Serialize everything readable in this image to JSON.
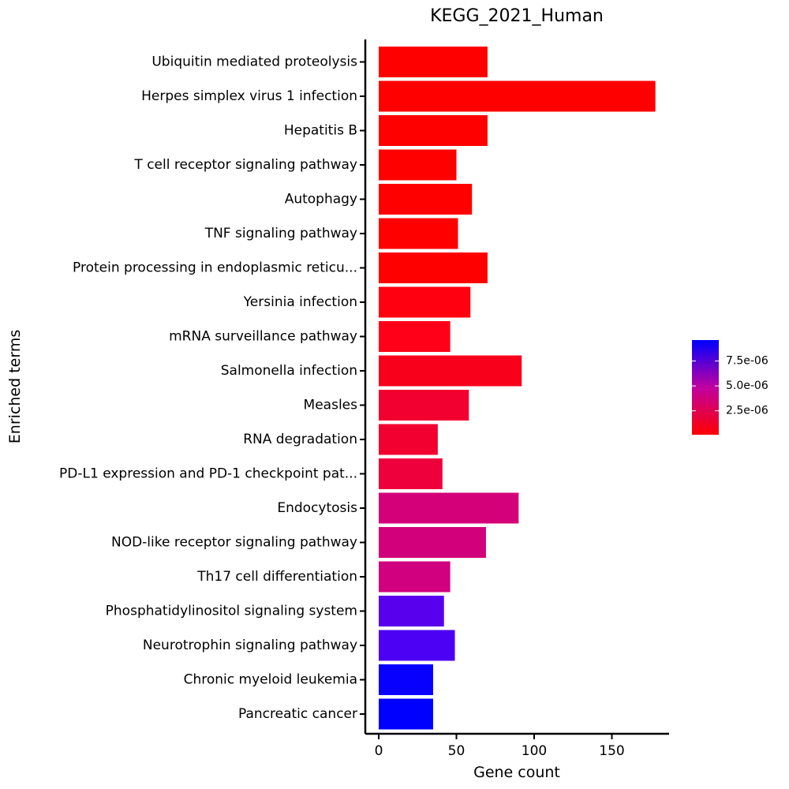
{
  "chart_data": {
    "type": "bar",
    "orientation": "horizontal",
    "title": "KEGG_2021_Human",
    "xlabel": "Gene count",
    "ylabel": "Enriched terms",
    "xlim": [
      -8,
      187
    ],
    "xticks": [
      0,
      50,
      100,
      150
    ],
    "grid": false,
    "legend_placement": "right",
    "categories": [
      "Ubiquitin mediated proteolysis",
      "Herpes simplex virus 1 infection",
      "Hepatitis B",
      "T cell receptor signaling pathway",
      "Autophagy",
      "TNF signaling pathway",
      "Protein processing in endoplasmic reticu...",
      "Yersinia infection",
      "mRNA surveillance pathway",
      "Salmonella infection",
      "Measles",
      "RNA degradation",
      "PD-L1 expression and PD-1 checkpoint pat...",
      "Endocytosis",
      "NOD-like receptor signaling pathway",
      "Th17 cell differentiation",
      "Phosphatidylinositol signaling system",
      "Neurotrophin signaling pathway",
      "Chronic myeloid leukemia",
      "Pancreatic cancer"
    ],
    "values": [
      70,
      178,
      70,
      50,
      60,
      51,
      70,
      59,
      46,
      92,
      58,
      38,
      41,
      90,
      69,
      46,
      42,
      49,
      35,
      35
    ],
    "colors": [
      "#ff0000",
      "#ff0000",
      "#ff0000",
      "#ff0000",
      "#ff0000",
      "#ff0000",
      "#ff0000",
      "#ff0010",
      "#ff0018",
      "#f8001c",
      "#f20030",
      "#f20030",
      "#ee003c",
      "#d4007a",
      "#d2007a",
      "#d0007e",
      "#5800ee",
      "#4c00f4",
      "#0800ff",
      "#0000ff"
    ],
    "colorbar": {
      "tick_labels": [
        "7.5e-06",
        "5.0e-06",
        "2.5e-06"
      ],
      "tick_values": [
        7.5e-06,
        5e-06,
        2.5e-06
      ],
      "range": [
        1e-07,
        9.6e-06
      ],
      "color_low": "#ff0000",
      "color_high": "#0000ff"
    }
  }
}
